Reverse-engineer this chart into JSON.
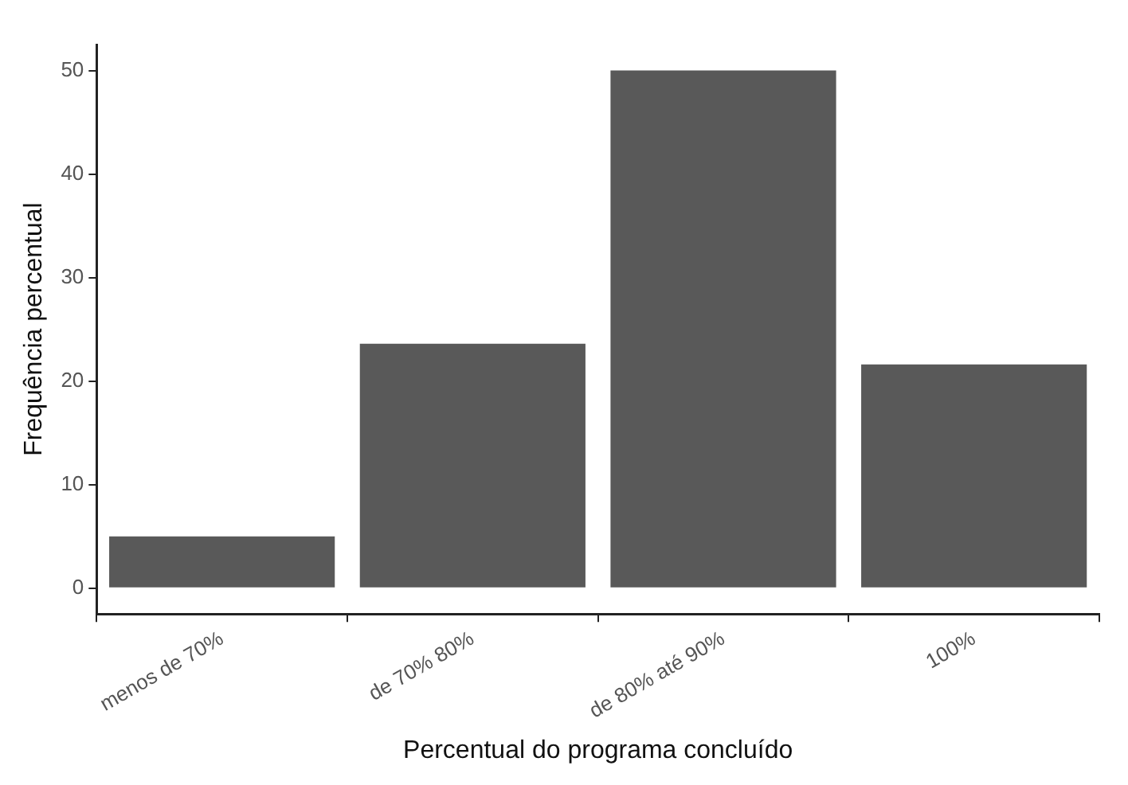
{
  "chart_data": {
    "type": "bar",
    "xlabel": "Percentual do programa concluído",
    "ylabel": "Frequência percentual",
    "categories": [
      "menos de 70%",
      "de 70% 80%",
      "de 80% até 90%",
      "100%"
    ],
    "values": [
      5,
      23.6,
      50,
      21.6
    ],
    "color": "#595959",
    "ylim": [
      -2.5,
      52.5
    ],
    "yticks": [
      0,
      10,
      20,
      30,
      40,
      50
    ],
    "grid": false,
    "legend": false
  }
}
